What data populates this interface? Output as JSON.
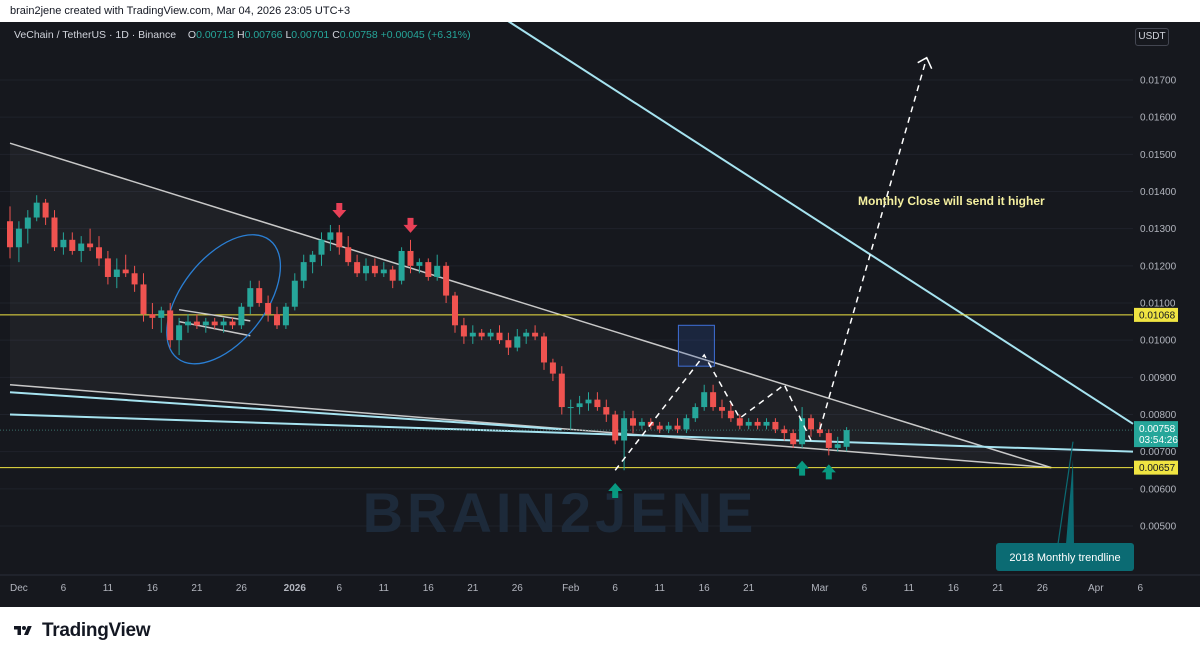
{
  "header": {
    "attribution": "brain2jene created with TradingView.com, Mar 04, 2026 23:05 UTC+3"
  },
  "legend": {
    "symbol": "VeChain / TetherUS · 1D · Binance",
    "o_label": "O",
    "o_value": "0.00713",
    "h_label": "H",
    "h_value": "0.00766",
    "l_label": "L",
    "l_value": "0.00701",
    "c_label": "C",
    "c_value": "0.00758",
    "change": "+0.00045 (+6.31%)"
  },
  "currency": "USDT",
  "watermark": "BRAIN2JENE",
  "footer": {
    "brand": "TradingView"
  },
  "colors": {
    "bg": "#16181e",
    "up": "#26a69a",
    "down": "#ef5350",
    "level": "#f0e442",
    "cyan": "#a6e3f0",
    "white_line": "#c8c8c8",
    "arrow_down": "#e84057",
    "arrow_up": "#089981",
    "label_bg": "#0b6b73"
  },
  "chart_data": {
    "type": "candlestick",
    "title": "VeChain / TetherUS · 1D · Binance",
    "y_ticks": [
      "0.01700",
      "0.01600",
      "0.01500",
      "0.01400",
      "0.01300",
      "0.01200",
      "0.01100",
      "0.01000",
      "0.00900",
      "0.00800",
      "0.00700",
      "0.00600",
      "0.00500"
    ],
    "ylim": [
      0.0043,
      0.0177
    ],
    "x_ticks": [
      "Dec",
      "6",
      "11",
      "16",
      "21",
      "26",
      "2026",
      "6",
      "11",
      "16",
      "21",
      "26",
      "Feb",
      "6",
      "11",
      "16",
      "21",
      "Mar",
      "6",
      "11",
      "16",
      "21",
      "26",
      "Apr",
      "6"
    ],
    "horizontal_levels": [
      {
        "label": "0.01068",
        "value": 0.01068
      },
      {
        "label": "0.00657",
        "value": 0.00657
      }
    ],
    "last_price": {
      "value": "0.00758",
      "countdown": "03:54:26"
    },
    "annotations": [
      "Monthly Close will send it higher",
      "2018 Monthly trendline"
    ],
    "candles": [
      {
        "d": "2025-11-30",
        "o": 0.0132,
        "h": 0.0136,
        "l": 0.0122,
        "c": 0.0125
      },
      {
        "d": "2025-12-01",
        "o": 0.0125,
        "h": 0.0132,
        "l": 0.0121,
        "c": 0.013
      },
      {
        "d": "2025-12-02",
        "o": 0.013,
        "h": 0.0135,
        "l": 0.0126,
        "c": 0.0133
      },
      {
        "d": "2025-12-03",
        "o": 0.0133,
        "h": 0.0139,
        "l": 0.0132,
        "c": 0.0137
      },
      {
        "d": "2025-12-04",
        "o": 0.0137,
        "h": 0.0138,
        "l": 0.0131,
        "c": 0.0133
      },
      {
        "d": "2025-12-05",
        "o": 0.0133,
        "h": 0.0135,
        "l": 0.0124,
        "c": 0.0125
      },
      {
        "d": "2025-12-06",
        "o": 0.0125,
        "h": 0.0129,
        "l": 0.0123,
        "c": 0.0127
      },
      {
        "d": "2025-12-07",
        "o": 0.0127,
        "h": 0.0129,
        "l": 0.0123,
        "c": 0.0124
      },
      {
        "d": "2025-12-08",
        "o": 0.0124,
        "h": 0.0128,
        "l": 0.0121,
        "c": 0.0126
      },
      {
        "d": "2025-12-09",
        "o": 0.0126,
        "h": 0.013,
        "l": 0.0124,
        "c": 0.0125
      },
      {
        "d": "2025-12-10",
        "o": 0.0125,
        "h": 0.0128,
        "l": 0.012,
        "c": 0.0122
      },
      {
        "d": "2025-12-11",
        "o": 0.0122,
        "h": 0.0124,
        "l": 0.0115,
        "c": 0.0117
      },
      {
        "d": "2025-12-12",
        "o": 0.0117,
        "h": 0.0122,
        "l": 0.0114,
        "c": 0.0119
      },
      {
        "d": "2025-12-13",
        "o": 0.0119,
        "h": 0.0123,
        "l": 0.0117,
        "c": 0.0118
      },
      {
        "d": "2025-12-14",
        "o": 0.0118,
        "h": 0.012,
        "l": 0.0113,
        "c": 0.0115
      },
      {
        "d": "2025-12-15",
        "o": 0.0115,
        "h": 0.0118,
        "l": 0.0105,
        "c": 0.0107
      },
      {
        "d": "2025-12-16",
        "o": 0.0107,
        "h": 0.011,
        "l": 0.0103,
        "c": 0.0106
      },
      {
        "d": "2025-12-17",
        "o": 0.0106,
        "h": 0.0109,
        "l": 0.0102,
        "c": 0.0108
      },
      {
        "d": "2025-12-18",
        "o": 0.0108,
        "h": 0.011,
        "l": 0.0098,
        "c": 0.01
      },
      {
        "d": "2025-12-19",
        "o": 0.01,
        "h": 0.0106,
        "l": 0.0096,
        "c": 0.0104
      },
      {
        "d": "2025-12-20",
        "o": 0.0104,
        "h": 0.0107,
        "l": 0.0102,
        "c": 0.0105
      },
      {
        "d": "2025-12-21",
        "o": 0.0105,
        "h": 0.0107,
        "l": 0.0103,
        "c": 0.0104
      },
      {
        "d": "2025-12-22",
        "o": 0.0104,
        "h": 0.0106,
        "l": 0.0102,
        "c": 0.0105
      },
      {
        "d": "2025-12-23",
        "o": 0.0105,
        "h": 0.0106,
        "l": 0.0103,
        "c": 0.0104
      },
      {
        "d": "2025-12-24",
        "o": 0.0104,
        "h": 0.0106,
        "l": 0.0102,
        "c": 0.0105
      },
      {
        "d": "2025-12-25",
        "o": 0.0105,
        "h": 0.0106,
        "l": 0.0103,
        "c": 0.0104
      },
      {
        "d": "2025-12-26",
        "o": 0.0104,
        "h": 0.011,
        "l": 0.0103,
        "c": 0.0109
      },
      {
        "d": "2025-12-27",
        "o": 0.0109,
        "h": 0.0116,
        "l": 0.0107,
        "c": 0.0114
      },
      {
        "d": "2025-12-28",
        "o": 0.0114,
        "h": 0.0116,
        "l": 0.0109,
        "c": 0.011
      },
      {
        "d": "2025-12-29",
        "o": 0.011,
        "h": 0.0112,
        "l": 0.0105,
        "c": 0.0107
      },
      {
        "d": "2025-12-30",
        "o": 0.0107,
        "h": 0.0109,
        "l": 0.0103,
        "c": 0.0104
      },
      {
        "d": "2025-12-31",
        "o": 0.0104,
        "h": 0.011,
        "l": 0.0103,
        "c": 0.0109
      },
      {
        "d": "2026-01-01",
        "o": 0.0109,
        "h": 0.0118,
        "l": 0.0108,
        "c": 0.0116
      },
      {
        "d": "2026-01-02",
        "o": 0.0116,
        "h": 0.0123,
        "l": 0.0114,
        "c": 0.0121
      },
      {
        "d": "2026-01-03",
        "o": 0.0121,
        "h": 0.0124,
        "l": 0.0118,
        "c": 0.0123
      },
      {
        "d": "2026-01-04",
        "o": 0.0123,
        "h": 0.0129,
        "l": 0.012,
        "c": 0.0127
      },
      {
        "d": "2026-01-05",
        "o": 0.0127,
        "h": 0.0131,
        "l": 0.0124,
        "c": 0.0129
      },
      {
        "d": "2026-01-06",
        "o": 0.0129,
        "h": 0.0131,
        "l": 0.0123,
        "c": 0.0125
      },
      {
        "d": "2026-01-07",
        "o": 0.0125,
        "h": 0.0128,
        "l": 0.012,
        "c": 0.0121
      },
      {
        "d": "2026-01-08",
        "o": 0.0121,
        "h": 0.0123,
        "l": 0.0117,
        "c": 0.0118
      },
      {
        "d": "2026-01-09",
        "o": 0.0118,
        "h": 0.0122,
        "l": 0.0116,
        "c": 0.012
      },
      {
        "d": "2026-01-10",
        "o": 0.012,
        "h": 0.0122,
        "l": 0.0117,
        "c": 0.0118
      },
      {
        "d": "2026-01-11",
        "o": 0.0118,
        "h": 0.0121,
        "l": 0.0117,
        "c": 0.0119
      },
      {
        "d": "2026-01-12",
        "o": 0.0119,
        "h": 0.012,
        "l": 0.0114,
        "c": 0.0116
      },
      {
        "d": "2026-01-13",
        "o": 0.0116,
        "h": 0.0125,
        "l": 0.0115,
        "c": 0.0124
      },
      {
        "d": "2026-01-14",
        "o": 0.0124,
        "h": 0.0127,
        "l": 0.0118,
        "c": 0.012
      },
      {
        "d": "2026-01-15",
        "o": 0.012,
        "h": 0.0122,
        "l": 0.0118,
        "c": 0.0121
      },
      {
        "d": "2026-01-16",
        "o": 0.0121,
        "h": 0.0122,
        "l": 0.0116,
        "c": 0.0117
      },
      {
        "d": "2026-01-17",
        "o": 0.0117,
        "h": 0.0123,
        "l": 0.0116,
        "c": 0.012
      },
      {
        "d": "2026-01-18",
        "o": 0.012,
        "h": 0.0121,
        "l": 0.011,
        "c": 0.0112
      },
      {
        "d": "2026-01-19",
        "o": 0.0112,
        "h": 0.0113,
        "l": 0.0102,
        "c": 0.0104
      },
      {
        "d": "2026-01-20",
        "o": 0.0104,
        "h": 0.0106,
        "l": 0.0099,
        "c": 0.0101
      },
      {
        "d": "2026-01-21",
        "o": 0.0101,
        "h": 0.0104,
        "l": 0.0099,
        "c": 0.0102
      },
      {
        "d": "2026-01-22",
        "o": 0.0102,
        "h": 0.0103,
        "l": 0.01,
        "c": 0.0101
      },
      {
        "d": "2026-01-23",
        "o": 0.0101,
        "h": 0.0103,
        "l": 0.01,
        "c": 0.0102
      },
      {
        "d": "2026-01-24",
        "o": 0.0102,
        "h": 0.0104,
        "l": 0.0099,
        "c": 0.01
      },
      {
        "d": "2026-01-25",
        "o": 0.01,
        "h": 0.0102,
        "l": 0.0096,
        "c": 0.0098
      },
      {
        "d": "2026-01-26",
        "o": 0.0098,
        "h": 0.0103,
        "l": 0.0097,
        "c": 0.0101
      },
      {
        "d": "2026-01-27",
        "o": 0.0101,
        "h": 0.0103,
        "l": 0.0099,
        "c": 0.0102
      },
      {
        "d": "2026-01-28",
        "o": 0.0102,
        "h": 0.0104,
        "l": 0.01,
        "c": 0.0101
      },
      {
        "d": "2026-01-29",
        "o": 0.0101,
        "h": 0.0102,
        "l": 0.0092,
        "c": 0.0094
      },
      {
        "d": "2026-01-30",
        "o": 0.0094,
        "h": 0.0095,
        "l": 0.0089,
        "c": 0.0091
      },
      {
        "d": "2026-01-31",
        "o": 0.0091,
        "h": 0.0093,
        "l": 0.008,
        "c": 0.0082
      },
      {
        "d": "2026-02-01",
        "o": 0.0082,
        "h": 0.0084,
        "l": 0.0076,
        "c": 0.0082
      },
      {
        "d": "2026-02-02",
        "o": 0.0082,
        "h": 0.0085,
        "l": 0.008,
        "c": 0.0083
      },
      {
        "d": "2026-02-03",
        "o": 0.0083,
        "h": 0.0086,
        "l": 0.0081,
        "c": 0.0084
      },
      {
        "d": "2026-02-04",
        "o": 0.0084,
        "h": 0.0086,
        "l": 0.0081,
        "c": 0.0082
      },
      {
        "d": "2026-02-05",
        "o": 0.0082,
        "h": 0.0084,
        "l": 0.0078,
        "c": 0.008
      },
      {
        "d": "2026-02-06",
        "o": 0.008,
        "h": 0.0081,
        "l": 0.0072,
        "c": 0.0073
      },
      {
        "d": "2026-02-07",
        "o": 0.0073,
        "h": 0.0081,
        "l": 0.0065,
        "c": 0.0079
      },
      {
        "d": "2026-02-08",
        "o": 0.0079,
        "h": 0.0081,
        "l": 0.0075,
        "c": 0.0077
      },
      {
        "d": "2026-02-09",
        "o": 0.0077,
        "h": 0.0079,
        "l": 0.0076,
        "c": 0.0078
      },
      {
        "d": "2026-02-10",
        "o": 0.0078,
        "h": 0.0079,
        "l": 0.0076,
        "c": 0.0077
      },
      {
        "d": "2026-02-11",
        "o": 0.0077,
        "h": 0.0078,
        "l": 0.0075,
        "c": 0.0076
      },
      {
        "d": "2026-02-12",
        "o": 0.0076,
        "h": 0.0078,
        "l": 0.0075,
        "c": 0.0077
      },
      {
        "d": "2026-02-13",
        "o": 0.0077,
        "h": 0.0079,
        "l": 0.0075,
        "c": 0.0076
      },
      {
        "d": "2026-02-14",
        "o": 0.0076,
        "h": 0.008,
        "l": 0.0075,
        "c": 0.0079
      },
      {
        "d": "2026-02-15",
        "o": 0.0079,
        "h": 0.0083,
        "l": 0.0078,
        "c": 0.0082
      },
      {
        "d": "2026-02-16",
        "o": 0.0082,
        "h": 0.0088,
        "l": 0.0081,
        "c": 0.0086
      },
      {
        "d": "2026-02-17",
        "o": 0.0086,
        "h": 0.0088,
        "l": 0.0081,
        "c": 0.0082
      },
      {
        "d": "2026-02-18",
        "o": 0.0082,
        "h": 0.0084,
        "l": 0.0079,
        "c": 0.0081
      },
      {
        "d": "2026-02-19",
        "o": 0.0081,
        "h": 0.0083,
        "l": 0.0078,
        "c": 0.0079
      },
      {
        "d": "2026-02-20",
        "o": 0.0079,
        "h": 0.008,
        "l": 0.0076,
        "c": 0.0077
      },
      {
        "d": "2026-02-21",
        "o": 0.0077,
        "h": 0.0079,
        "l": 0.0076,
        "c": 0.0078
      },
      {
        "d": "2026-02-22",
        "o": 0.0078,
        "h": 0.0079,
        "l": 0.0076,
        "c": 0.0077
      },
      {
        "d": "2026-02-23",
        "o": 0.0077,
        "h": 0.0079,
        "l": 0.0076,
        "c": 0.0078
      },
      {
        "d": "2026-02-24",
        "o": 0.0078,
        "h": 0.0079,
        "l": 0.0075,
        "c": 0.0076
      },
      {
        "d": "2026-02-25",
        "o": 0.0076,
        "h": 0.0077,
        "l": 0.0073,
        "c": 0.0075
      },
      {
        "d": "2026-02-26",
        "o": 0.0075,
        "h": 0.0076,
        "l": 0.0071,
        "c": 0.0072
      },
      {
        "d": "2026-02-27",
        "o": 0.0072,
        "h": 0.0082,
        "l": 0.0071,
        "c": 0.0079
      },
      {
        "d": "2026-02-28",
        "o": 0.0079,
        "h": 0.008,
        "l": 0.0074,
        "c": 0.0076
      },
      {
        "d": "2026-03-01",
        "o": 0.0076,
        "h": 0.0078,
        "l": 0.0074,
        "c": 0.0075
      },
      {
        "d": "2026-03-02",
        "o": 0.0075,
        "h": 0.0076,
        "l": 0.0069,
        "c": 0.0071
      },
      {
        "d": "2026-03-03",
        "o": 0.0071,
        "h": 0.0074,
        "l": 0.007,
        "c": 0.0072
      },
      {
        "d": "2026-03-04",
        "o": 0.00713,
        "h": 0.00766,
        "l": 0.00701,
        "c": 0.00758
      }
    ]
  }
}
